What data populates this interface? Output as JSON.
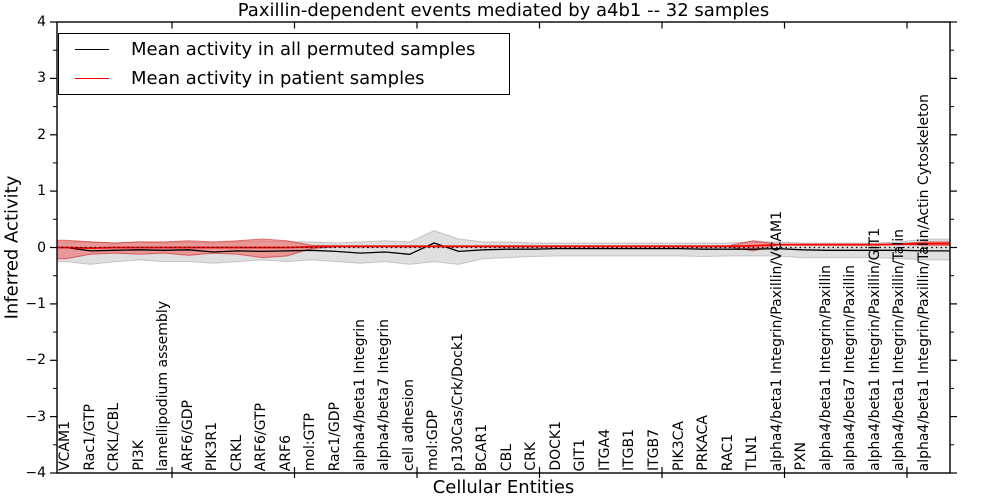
{
  "window": {
    "background": "#ffffff"
  },
  "chart_data": {
    "type": "line",
    "title": "Paxillin-dependent events mediated by a4b1 -- 32 samples",
    "xlabel": "Cellular Entities",
    "ylabel": "Inferred Activity",
    "ylim": [
      -4,
      4
    ],
    "yticks": [
      -4,
      -3,
      -2,
      -1,
      0,
      1,
      2,
      3,
      4
    ],
    "ytick_minor_step": 0.5,
    "grid": false,
    "zero_line": "dotted",
    "legend_position": "upper left",
    "x_tick_label_rotation": 90,
    "categories": [
      "VCAM1",
      "Rac1/GTP",
      "CRKL/CBL",
      "PI3K",
      "lamellipodium assembly",
      "ARF6/GDP",
      "PIK3R1",
      "CRKL",
      "ARF6/GTP",
      "ARF6",
      "mol:GTP",
      "Rac1/GDP",
      "alpha4/beta1 Integrin",
      "alpha4/beta7 Integrin",
      "cell adhesion",
      "mol:GDP",
      "p130Cas/Crk/Dock1",
      "BCAR1",
      "CBL",
      "CRK",
      "DOCK1",
      "GIT1",
      "ITGA4",
      "ITGB1",
      "ITGB7",
      "PIK3CA",
      "PRKACA",
      "RAC1",
      "TLN1",
      "alpha4/beta1 Integrin/Paxillin/VCAM1",
      "PXN",
      "alpha4/beta1 Integrin/Paxillin",
      "alpha4/beta7 Integrin/Paxillin",
      "alpha4/beta1 Integrin/Paxillin/GIT1",
      "alpha4/beta1 Integrin/Paxillin/Talin",
      "alpha4/beta1 Integrin/Paxillin/Talin/Actin Cytoskeleton"
    ],
    "series": [
      {
        "name": "Mean activity in all permuted samples",
        "line_color": "#000000",
        "band_color": "rgba(128,128,128,0.25)",
        "band_edge_color": "rgba(120,120,120,0.35)",
        "values": [
          0.0,
          -0.06,
          -0.05,
          -0.04,
          -0.05,
          -0.04,
          -0.08,
          -0.06,
          -0.07,
          -0.06,
          -0.05,
          -0.07,
          -0.1,
          -0.08,
          -0.12,
          0.08,
          -0.07,
          -0.04,
          -0.03,
          -0.03,
          -0.02,
          -0.02,
          -0.02,
          -0.02,
          -0.02,
          -0.02,
          -0.03,
          -0.03,
          -0.03,
          -0.02,
          -0.04,
          -0.05,
          -0.05,
          -0.05,
          -0.05,
          -0.06
        ],
        "band_upper": [
          0.1,
          0.1,
          0.08,
          0.1,
          0.08,
          0.1,
          0.08,
          0.1,
          0.12,
          0.1,
          0.1,
          0.08,
          0.1,
          0.12,
          0.1,
          0.3,
          0.15,
          0.1,
          0.1,
          0.08,
          0.08,
          0.08,
          0.08,
          0.08,
          0.08,
          0.08,
          0.08,
          0.08,
          0.1,
          0.1,
          0.08,
          0.08,
          0.08,
          0.08,
          0.1,
          0.15
        ],
        "band_lower": [
          -0.25,
          -0.3,
          -0.25,
          -0.22,
          -0.25,
          -0.25,
          -0.28,
          -0.25,
          -0.22,
          -0.25,
          -0.22,
          -0.25,
          -0.28,
          -0.25,
          -0.3,
          -0.25,
          -0.3,
          -0.2,
          -0.18,
          -0.16,
          -0.15,
          -0.15,
          -0.15,
          -0.15,
          -0.15,
          -0.15,
          -0.16,
          -0.15,
          -0.15,
          -0.15,
          -0.18,
          -0.18,
          -0.18,
          -0.18,
          -0.2,
          -0.22
        ]
      },
      {
        "name": "Mean activity in patient samples",
        "line_color": "#ff0000",
        "band_color": "rgba(255,0,0,0.32)",
        "band_edge_color": "rgba(200,0,0,0.5)",
        "values": [
          0.0,
          -0.01,
          0.0,
          0.0,
          0.0,
          0.0,
          0.0,
          0.0,
          0.0,
          0.0,
          0.01,
          0.02,
          0.02,
          0.02,
          0.02,
          0.02,
          0.02,
          0.02,
          0.02,
          0.02,
          0.02,
          0.02,
          0.02,
          0.02,
          0.02,
          0.02,
          0.02,
          0.02,
          0.03,
          0.05,
          0.05,
          0.05,
          0.05,
          0.05,
          0.06,
          0.07
        ],
        "band_upper": [
          0.13,
          0.1,
          0.08,
          0.1,
          0.1,
          0.12,
          0.1,
          0.12,
          0.15,
          0.12,
          0.04,
          0.03,
          0.03,
          0.03,
          0.03,
          0.03,
          0.03,
          0.03,
          0.03,
          0.03,
          0.03,
          0.03,
          0.03,
          0.03,
          0.03,
          0.03,
          0.03,
          0.03,
          0.12,
          0.06,
          0.06,
          0.06,
          0.06,
          0.06,
          0.07,
          0.1
        ],
        "band_lower": [
          -0.2,
          -0.12,
          -0.1,
          -0.12,
          -0.1,
          -0.14,
          -0.1,
          -0.12,
          -0.18,
          -0.15,
          -0.02,
          0.01,
          0.01,
          0.01,
          0.01,
          0.01,
          0.01,
          0.01,
          0.01,
          0.01,
          0.01,
          0.01,
          0.01,
          0.01,
          0.01,
          0.01,
          0.01,
          0.01,
          -0.06,
          0.04,
          0.04,
          0.04,
          0.04,
          0.04,
          0.05,
          0.04
        ]
      }
    ]
  },
  "colors": {
    "frame": "#000000",
    "background": "#ffffff",
    "permuted_line": "#000000",
    "patient_line": "#ff0000"
  }
}
